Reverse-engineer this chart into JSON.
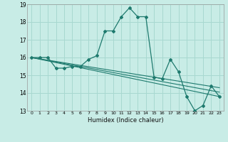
{
  "title": "",
  "xlabel": "Humidex (Indice chaleur)",
  "ylabel": "",
  "background_color": "#c8ece6",
  "grid_color": "#a8d8d0",
  "line_color": "#1e7a6e",
  "xlim": [
    -0.5,
    23.5
  ],
  "ylim": [
    13,
    19
  ],
  "yticks": [
    13,
    14,
    15,
    16,
    17,
    18,
    19
  ],
  "xticks": [
    0,
    1,
    2,
    3,
    4,
    5,
    6,
    7,
    8,
    9,
    10,
    11,
    12,
    13,
    14,
    15,
    16,
    17,
    18,
    19,
    20,
    21,
    22,
    23
  ],
  "series1_x": [
    0,
    1,
    2,
    3,
    4,
    5,
    6,
    7,
    8,
    9,
    10,
    11,
    12,
    13,
    14,
    15,
    16,
    17,
    18,
    19,
    20,
    21,
    22,
    23
  ],
  "series1_y": [
    16.0,
    16.0,
    16.0,
    15.4,
    15.4,
    15.5,
    15.5,
    15.9,
    16.1,
    17.5,
    17.5,
    18.3,
    18.8,
    18.3,
    18.3,
    14.9,
    14.8,
    15.9,
    15.2,
    13.8,
    13.0,
    13.3,
    14.4,
    13.8
  ],
  "series2_x": [
    0,
    23
  ],
  "series2_y": [
    16.0,
    13.8
  ],
  "series3_x": [
    0,
    23
  ],
  "series3_y": [
    16.0,
    14.05
  ],
  "series4_x": [
    0,
    23
  ],
  "series4_y": [
    16.0,
    14.3
  ]
}
